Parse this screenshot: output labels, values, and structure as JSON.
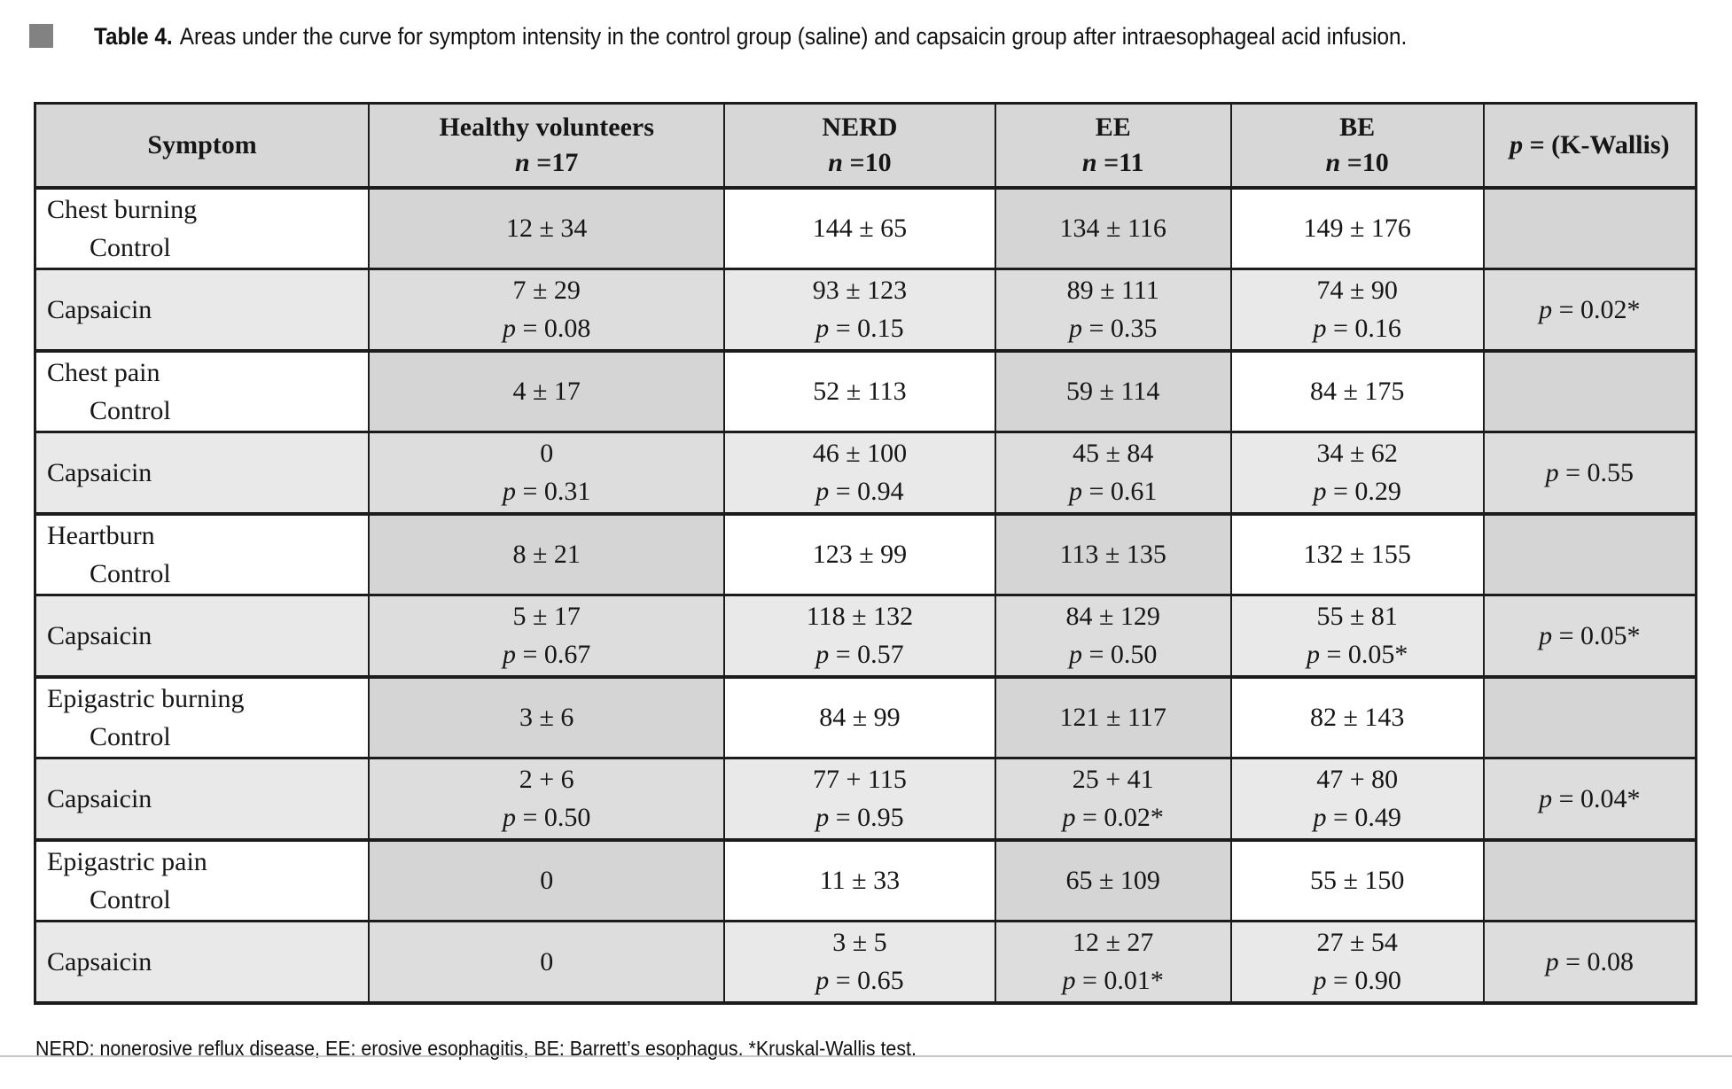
{
  "caption": {
    "label": "Table 4.",
    "text": "Areas under the curve for symptom intensity in the control group (saline) and capsaicin group after intraesophageal acid infusion."
  },
  "table": {
    "columns": [
      {
        "id": "symptom",
        "label": "Symptom"
      },
      {
        "id": "healthy-volunteers",
        "label": "Healthy volunteers",
        "n": "n =17"
      },
      {
        "id": "nerd",
        "label": "NERD",
        "n": "n =10"
      },
      {
        "id": "ee",
        "label": "EE",
        "n": "n =11"
      },
      {
        "id": "be",
        "label": "BE",
        "n": "n =10"
      },
      {
        "id": "k-wallis",
        "label": "p = (K-Wallis)",
        "italic_first": true
      }
    ],
    "rows": [
      {
        "variant": "control",
        "symptom": [
          "Chest burning",
          "Control"
        ],
        "cells": [
          [
            "12 ± 34"
          ],
          [
            "144 ± 65"
          ],
          [
            "134 ± 116"
          ],
          [
            "149 ± 176"
          ],
          []
        ]
      },
      {
        "variant": "capsaicin",
        "symptom": [
          "Capsaicin"
        ],
        "cells": [
          [
            "7 ± 29",
            "p = 0.08"
          ],
          [
            "93 ± 123",
            "p = 0.15"
          ],
          [
            "89 ± 111",
            "p = 0.35"
          ],
          [
            "74 ± 90",
            "p = 0.16"
          ],
          [
            "p = 0.02*"
          ]
        ]
      },
      {
        "variant": "control",
        "symptom": [
          "Chest pain",
          "Control"
        ],
        "cells": [
          [
            "4 ± 17"
          ],
          [
            "52 ± 113"
          ],
          [
            "59 ± 114"
          ],
          [
            "84 ± 175"
          ],
          []
        ]
      },
      {
        "variant": "capsaicin",
        "symptom": [
          "Capsaicin"
        ],
        "cells": [
          [
            "0",
            "p = 0.31"
          ],
          [
            "46 ± 100",
            "p = 0.94"
          ],
          [
            "45 ± 84",
            "p = 0.61"
          ],
          [
            "34 ± 62",
            "p = 0.29"
          ],
          [
            "p = 0.55"
          ]
        ]
      },
      {
        "variant": "control",
        "symptom": [
          "Heartburn",
          "Control"
        ],
        "cells": [
          [
            "8 ± 21"
          ],
          [
            "123 ± 99"
          ],
          [
            "113 ± 135"
          ],
          [
            "132 ± 155"
          ],
          []
        ]
      },
      {
        "variant": "capsaicin",
        "symptom": [
          "Capsaicin"
        ],
        "cells": [
          [
            "5 ± 17",
            "p = 0.67"
          ],
          [
            "118 ± 132",
            "p = 0.57"
          ],
          [
            "84 ± 129",
            "p = 0.50"
          ],
          [
            "55 ± 81",
            "p = 0.05*"
          ],
          [
            "p = 0.05*"
          ]
        ]
      },
      {
        "variant": "control",
        "symptom": [
          "Epigastric burning",
          "Control"
        ],
        "cells": [
          [
            "3 ± 6"
          ],
          [
            "84 ± 99"
          ],
          [
            "121 ± 117"
          ],
          [
            "82 ± 143"
          ],
          []
        ]
      },
      {
        "variant": "capsaicin",
        "symptom": [
          "Capsaicin"
        ],
        "cells": [
          [
            "2 + 6",
            "p = 0.50"
          ],
          [
            "77 + 115",
            "p = 0.95"
          ],
          [
            "25 + 41",
            "p = 0.02*"
          ],
          [
            "47 + 80",
            "p = 0.49"
          ],
          [
            "p = 0.04*"
          ]
        ]
      },
      {
        "variant": "control",
        "symptom": [
          "Epigastric pain",
          "Control"
        ],
        "cells": [
          [
            "0"
          ],
          [
            "11 ± 33"
          ],
          [
            "65 ± 109"
          ],
          [
            "55 ± 150"
          ],
          []
        ]
      },
      {
        "variant": "capsaicin",
        "symptom": [
          "Capsaicin"
        ],
        "cells": [
          [
            "0"
          ],
          [
            "3 ± 5",
            "p = 0.65"
          ],
          [
            "12 ± 27",
            "p = 0.01*"
          ],
          [
            "27 ± 54",
            "p = 0.90"
          ],
          [
            "p = 0.08"
          ]
        ]
      }
    ]
  },
  "footnote": "NERD: nonerosive reflux disease, EE: erosive esophagitis, BE: Barrett’s esophagus. *Kruskal-Wallis test.",
  "colors": {
    "header_bg": "#d7d7d7",
    "control_shaded_cell": "#d5d5d5",
    "capsaicin_row": "#e9e9e9",
    "capsaicin_shaded_cell": "#dddddd",
    "border": "#1c1c1c",
    "caption_bullet": "#828282",
    "page_edge_line": "#c6c6c6"
  }
}
